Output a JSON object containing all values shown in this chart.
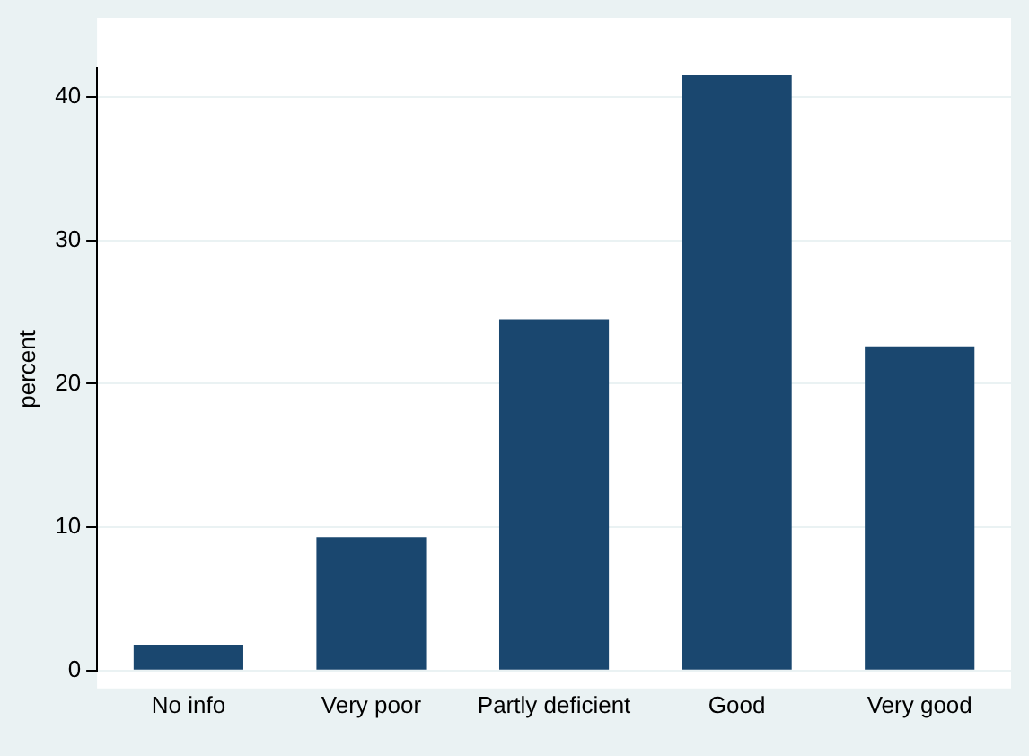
{
  "chart_data": {
    "type": "bar",
    "ylabel": "percent",
    "categories": [
      "No info",
      "Very poor",
      "Partly deficient",
      "Good",
      "Very good"
    ],
    "values": [
      1.8,
      9.3,
      24.5,
      41.5,
      22.6
    ],
    "color": "#1a476f",
    "ylim": [
      0,
      42
    ],
    "yticks": [
      0,
      10,
      20,
      30,
      40
    ],
    "grid": "y",
    "legend": false
  }
}
